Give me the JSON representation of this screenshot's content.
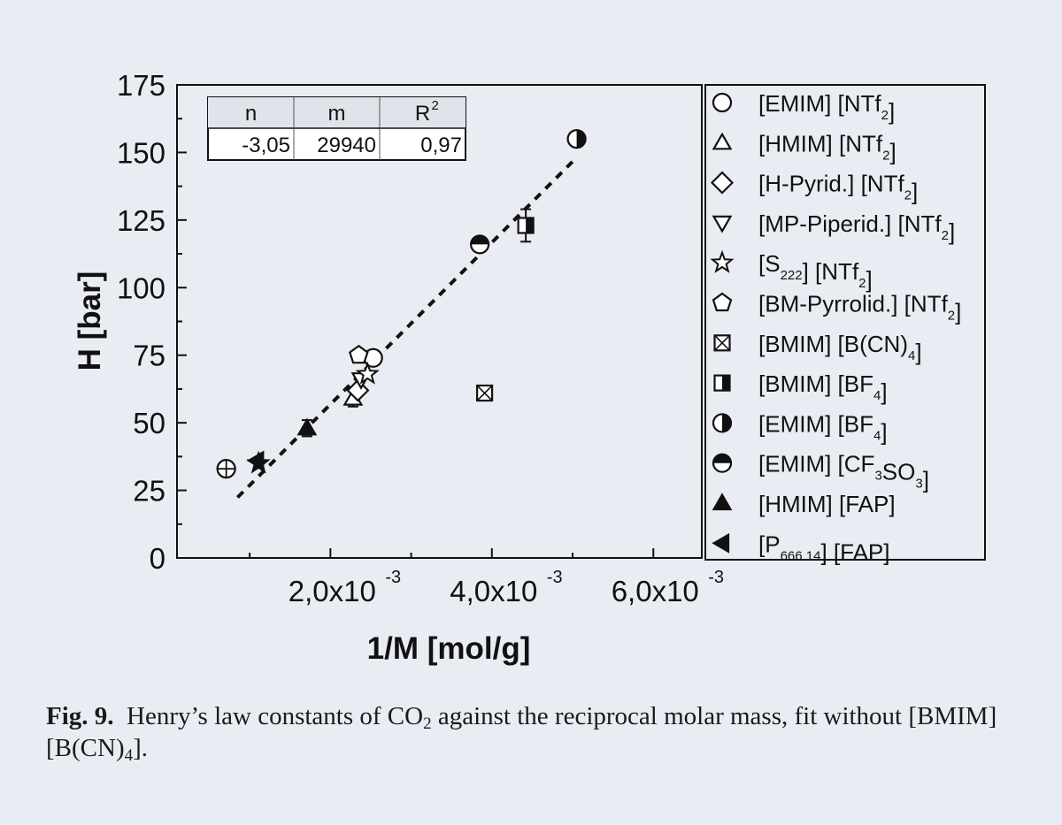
{
  "chart_data": {
    "type": "scatter",
    "xlabel": "1/M [mol/g]",
    "ylabel": "H [bar]",
    "xlim": [
      0.0001,
      0.0066
    ],
    "ylim": [
      0,
      175
    ],
    "xticks": [
      0.002,
      0.004,
      0.006
    ],
    "xtick_labels": [
      "2,0x10",
      "4,0x10",
      "6,0x10"
    ],
    "xtick_exponent": "-3",
    "yticks": [
      0,
      25,
      50,
      75,
      100,
      125,
      150,
      175
    ],
    "grid": false,
    "legend_position": "right, outside plot",
    "fit_table": {
      "headers": [
        "n",
        "m",
        "R"
      ],
      "r_superscript": "2",
      "values": [
        "-3,05",
        "29940",
        "0,97"
      ]
    },
    "fit_line": {
      "intercept": -3.05,
      "slope": 29940,
      "x_range": [
        0.00085,
        0.005
      ],
      "style": "dashed"
    },
    "series": [
      {
        "name": "[EMIM] [NTf2]",
        "label_parts": [
          [
            "[EMIM] [NTf",
            "n"
          ],
          [
            "2",
            "sub"
          ],
          [
            "]",
            "n"
          ]
        ],
        "marker": "circle",
        "fill": "none",
        "x": [
          0.00253
        ],
        "y": [
          74
        ],
        "err": [
          0
        ]
      },
      {
        "name": "[HMIM] [NTf2]",
        "label_parts": [
          [
            "[HMIM] [NTf",
            "n"
          ],
          [
            "2",
            "sub"
          ],
          [
            "]",
            "n"
          ]
        ],
        "marker": "triangle-up",
        "fill": "none",
        "x": [
          0.00228
        ],
        "y": [
          59
        ],
        "err": [
          3
        ]
      },
      {
        "name": "[H-Pyrid.] [NTf2]",
        "label_parts": [
          [
            "[H-Pyrid.] [NTf",
            "n"
          ],
          [
            "2",
            "sub"
          ],
          [
            "]",
            "n"
          ]
        ],
        "marker": "diamond",
        "fill": "none",
        "x": [
          0.00234
        ],
        "y": [
          62
        ],
        "err": [
          0
        ]
      },
      {
        "name": "[MP-Piperid.] [NTf2]",
        "label_parts": [
          [
            "[MP-Piperid.] [NTf",
            "n"
          ],
          [
            "2",
            "sub"
          ],
          [
            "]",
            "n"
          ]
        ],
        "marker": "triangle-down",
        "fill": "none",
        "x": [
          0.00238
        ],
        "y": [
          66
        ],
        "err": [
          0
        ]
      },
      {
        "name": "[S222] [NTf2]",
        "label_parts": [
          [
            "[S",
            "n"
          ],
          [
            "222",
            "sub"
          ],
          [
            "] [NTf",
            "n"
          ],
          [
            "2",
            "sub"
          ],
          [
            "]",
            "n"
          ]
        ],
        "marker": "star",
        "fill": "none",
        "x": [
          0.00246
        ],
        "y": [
          68
        ],
        "err": [
          0
        ]
      },
      {
        "name": "[BM-Pyrrolid.] [NTf2]",
        "label_parts": [
          [
            "[BM-Pyrrolid.] [NTf",
            "n"
          ],
          [
            "2",
            "sub"
          ],
          [
            "]",
            "n"
          ]
        ],
        "marker": "pentagon",
        "fill": "none",
        "x": [
          0.00235
        ],
        "y": [
          75
        ],
        "err": [
          2
        ]
      },
      {
        "name": "[BMIM] [B(CN)4]",
        "label_parts": [
          [
            "[BMIM] [B(CN)",
            "n"
          ],
          [
            "4",
            "sub"
          ],
          [
            "]",
            "n"
          ]
        ],
        "marker": "square-cross",
        "fill": "none",
        "x": [
          0.00391
        ],
        "y": [
          61
        ],
        "err": [
          2
        ]
      },
      {
        "name": "[BMIM] [BF4]",
        "label_parts": [
          [
            "[BMIM] [BF",
            "n"
          ],
          [
            "4",
            "sub"
          ],
          [
            "]",
            "n"
          ]
        ],
        "marker": "square-half-right",
        "fill": "half",
        "x": [
          0.00442
        ],
        "y": [
          123
        ],
        "err": [
          6
        ]
      },
      {
        "name": "[EMIM] [BF4]",
        "label_parts": [
          [
            "[EMIM] [BF",
            "n"
          ],
          [
            "4",
            "sub"
          ],
          [
            "]",
            "n"
          ]
        ],
        "marker": "circle-half-right",
        "fill": "half",
        "x": [
          0.00505
        ],
        "y": [
          155
        ],
        "err": [
          0
        ]
      },
      {
        "name": "[EMIM] [CF3SO3]",
        "label_parts": [
          [
            "[EMIM] [CF",
            "n"
          ],
          [
            "3",
            "sub"
          ],
          [
            "SO",
            "n"
          ],
          [
            "3",
            "sub"
          ],
          [
            "]",
            "n"
          ]
        ],
        "marker": "circle-half-top",
        "fill": "half",
        "x": [
          0.00385
        ],
        "y": [
          116
        ],
        "err": [
          0
        ]
      },
      {
        "name": "[HMIM] [FAP]",
        "label_parts": [
          [
            "[HMIM] [FAP]",
            "n"
          ]
        ],
        "marker": "triangle-up-filled",
        "fill": "full",
        "x": [
          0.00171
        ],
        "y": [
          48
        ],
        "err": [
          3
        ]
      },
      {
        "name": "[P666 14] [FAP]",
        "label_parts": [
          [
            "[P",
            "n"
          ],
          [
            "666 14",
            "sub"
          ],
          [
            "] [FAP]",
            "n"
          ]
        ],
        "marker": "triangle-left-filled",
        "fill": "full",
        "x": [
          0.00109
        ],
        "y": [
          36
        ],
        "err": [
          0
        ]
      }
    ],
    "unlabeled_points": [
      {
        "marker": "circle-cross",
        "x": [
          0.00071
        ],
        "y": [
          33
        ]
      },
      {
        "marker": "star-filled",
        "x": [
          0.00111
        ],
        "y": [
          35
        ]
      }
    ]
  },
  "caption": {
    "fig_label": "Fig. 9.",
    "text_1": "Henry’s law constants of CO",
    "sub_1": "2",
    "text_2": " against the reciprocal molar mass, fit without [BMIM] [B(CN)",
    "sub_2": "4",
    "text_3": "]."
  }
}
